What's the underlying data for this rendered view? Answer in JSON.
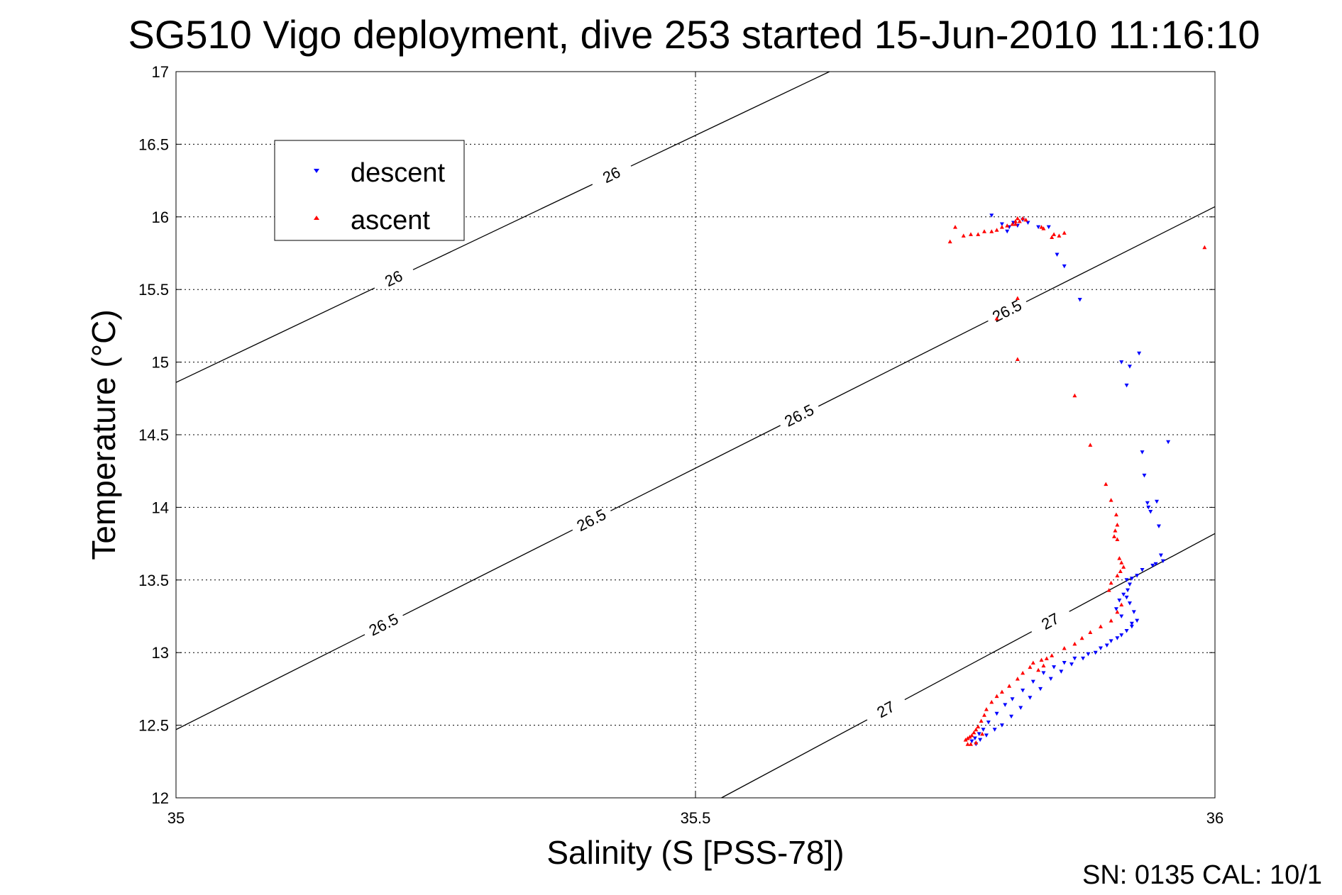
{
  "figure": {
    "title": "SG510 Vigo deployment, dive 253 started 15-Jun-2010 11:16:10",
    "footer": "SN: 0135  CAL: 10/1"
  },
  "chart_data": {
    "type": "scatter",
    "title": "SG510 Vigo deployment, dive 253 started 15-Jun-2010 11:16:10",
    "xlabel": "Salinity (S [PSS-78])",
    "ylabel": "Temperature (°C)",
    "xlim": [
      35,
      36
    ],
    "ylim": [
      12,
      17
    ],
    "xticks": [
      "35",
      "35.5",
      "36"
    ],
    "yticks": [
      "12",
      "12.5",
      "13",
      "13.5",
      "14",
      "14.5",
      "15",
      "15.5",
      "16",
      "16.5",
      "17"
    ],
    "grid": true,
    "legend_position": "upper-left",
    "colors": {
      "descent": "#0000ff",
      "ascent": "#ff0000",
      "contour": "#000000"
    },
    "series": [
      {
        "name": "descent",
        "marker": "triangle-down",
        "points": [
          [
            35.785,
            16.01
          ],
          [
            35.795,
            15.95
          ],
          [
            35.8,
            15.9
          ],
          [
            35.802,
            15.93
          ],
          [
            35.806,
            15.96
          ],
          [
            35.81,
            15.94
          ],
          [
            35.815,
            15.98
          ],
          [
            35.82,
            15.96
          ],
          [
            35.83,
            15.93
          ],
          [
            35.84,
            15.93
          ],
          [
            35.848,
            15.74
          ],
          [
            35.855,
            15.66
          ],
          [
            35.87,
            15.43
          ],
          [
            35.91,
            15.0
          ],
          [
            35.915,
            14.84
          ],
          [
            35.918,
            14.97
          ],
          [
            35.927,
            15.06
          ],
          [
            35.93,
            14.38
          ],
          [
            35.932,
            14.22
          ],
          [
            35.935,
            14.03
          ],
          [
            35.936,
            14.0
          ],
          [
            35.938,
            13.97
          ],
          [
            35.944,
            14.04
          ],
          [
            35.946,
            13.87
          ],
          [
            35.948,
            13.67
          ],
          [
            35.955,
            14.45
          ],
          [
            35.95,
            13.63
          ],
          [
            35.943,
            13.61
          ],
          [
            35.94,
            13.6
          ],
          [
            35.93,
            13.57
          ],
          [
            35.925,
            13.53
          ],
          [
            35.92,
            13.51
          ],
          [
            35.918,
            13.47
          ],
          [
            35.916,
            13.43
          ],
          [
            35.915,
            13.38
          ],
          [
            35.918,
            13.34
          ],
          [
            35.922,
            13.28
          ],
          [
            35.925,
            13.22
          ],
          [
            35.92,
            13.18
          ],
          [
            35.91,
            13.12
          ],
          [
            35.9,
            13.08
          ],
          [
            35.89,
            13.03
          ],
          [
            35.878,
            12.99
          ],
          [
            35.865,
            12.96
          ],
          [
            35.855,
            12.93
          ],
          [
            35.845,
            12.9
          ],
          [
            35.835,
            12.86
          ],
          [
            35.825,
            12.8
          ],
          [
            35.815,
            12.74
          ],
          [
            35.805,
            12.68
          ],
          [
            35.798,
            12.64
          ],
          [
            35.79,
            12.58
          ],
          [
            35.782,
            12.52
          ],
          [
            35.777,
            12.47
          ],
          [
            35.773,
            12.44
          ],
          [
            35.769,
            12.41
          ],
          [
            35.766,
            12.39
          ],
          [
            35.77,
            12.37
          ],
          [
            35.774,
            12.4
          ],
          [
            35.78,
            12.43
          ],
          [
            35.788,
            12.47
          ],
          [
            35.795,
            12.5
          ],
          [
            35.804,
            12.56
          ],
          [
            35.813,
            12.62
          ],
          [
            35.822,
            12.69
          ],
          [
            35.832,
            12.75
          ],
          [
            35.842,
            12.82
          ],
          [
            35.852,
            12.87
          ],
          [
            35.862,
            12.92
          ],
          [
            35.873,
            12.96
          ],
          [
            35.885,
            13.0
          ],
          [
            35.896,
            13.05
          ],
          [
            35.906,
            13.1
          ],
          [
            35.915,
            13.15
          ],
          [
            35.92,
            13.2
          ],
          [
            35.91,
            13.25
          ],
          [
            35.905,
            13.3
          ],
          [
            35.908,
            13.36
          ],
          [
            35.912,
            13.4
          ],
          [
            35.915,
            13.5
          ]
        ]
      },
      {
        "name": "ascent",
        "marker": "triangle-up",
        "points": [
          [
            35.745,
            15.83
          ],
          [
            35.75,
            15.93
          ],
          [
            35.758,
            15.87
          ],
          [
            35.765,
            15.88
          ],
          [
            35.772,
            15.88
          ],
          [
            35.778,
            15.9
          ],
          [
            35.785,
            15.9
          ],
          [
            35.79,
            15.91
          ],
          [
            35.795,
            15.93
          ],
          [
            35.8,
            15.94
          ],
          [
            35.805,
            15.95
          ],
          [
            35.808,
            15.97
          ],
          [
            35.81,
            15.99
          ],
          [
            35.812,
            15.97
          ],
          [
            35.815,
            15.99
          ],
          [
            35.818,
            15.98
          ],
          [
            35.808,
            15.95
          ],
          [
            35.79,
            15.3
          ],
          [
            35.81,
            15.44
          ],
          [
            35.81,
            15.02
          ],
          [
            35.833,
            15.93
          ],
          [
            35.835,
            15.92
          ],
          [
            35.843,
            15.86
          ],
          [
            35.845,
            15.88
          ],
          [
            35.85,
            15.87
          ],
          [
            35.855,
            15.89
          ],
          [
            35.865,
            14.77
          ],
          [
            35.88,
            14.43
          ],
          [
            35.895,
            14.16
          ],
          [
            35.9,
            14.05
          ],
          [
            35.905,
            13.95
          ],
          [
            35.906,
            13.88
          ],
          [
            35.904,
            13.84
          ],
          [
            35.903,
            13.8
          ],
          [
            35.906,
            13.78
          ],
          [
            35.908,
            13.65
          ],
          [
            35.91,
            13.62
          ],
          [
            35.912,
            13.59
          ],
          [
            35.909,
            13.56
          ],
          [
            35.906,
            13.53
          ],
          [
            35.9,
            13.48
          ],
          [
            35.898,
            13.43
          ],
          [
            35.91,
            13.33
          ],
          [
            35.906,
            13.28
          ],
          [
            35.9,
            13.22
          ],
          [
            35.89,
            13.18
          ],
          [
            35.88,
            13.14
          ],
          [
            35.872,
            13.1
          ],
          [
            35.865,
            13.06
          ],
          [
            35.855,
            13.03
          ],
          [
            35.843,
            12.98
          ],
          [
            35.838,
            12.96
          ],
          [
            35.833,
            12.95
          ],
          [
            35.825,
            12.93
          ],
          [
            35.822,
            12.9
          ],
          [
            35.815,
            12.86
          ],
          [
            35.81,
            12.82
          ],
          [
            35.802,
            12.77
          ],
          [
            35.795,
            12.73
          ],
          [
            35.79,
            12.7
          ],
          [
            35.785,
            12.66
          ],
          [
            35.78,
            12.61
          ],
          [
            35.778,
            12.57
          ],
          [
            35.775,
            12.53
          ],
          [
            35.772,
            12.49
          ],
          [
            35.77,
            12.47
          ],
          [
            35.768,
            12.45
          ],
          [
            35.766,
            12.43
          ],
          [
            35.764,
            12.42
          ],
          [
            35.762,
            12.41
          ],
          [
            35.76,
            12.4
          ],
          [
            35.776,
            12.44
          ],
          [
            35.77,
            12.38
          ],
          [
            35.765,
            12.37
          ],
          [
            35.762,
            12.37
          ],
          [
            35.83,
            12.88
          ],
          [
            35.835,
            12.91
          ],
          [
            35.99,
            15.79
          ]
        ]
      }
    ],
    "contours": [
      {
        "level": 26,
        "points": [
          [
            35.0,
            14.86
          ],
          [
            35.629,
            17.0
          ]
        ],
        "labels": [
          "26",
          "26"
        ]
      },
      {
        "level": 26.5,
        "points": [
          [
            35.0,
            12.47
          ],
          [
            36.0,
            16.07
          ]
        ],
        "labels": [
          "26.5",
          "26.5",
          "26.5",
          "26.5"
        ]
      },
      {
        "level": 27,
        "points": [
          [
            35.525,
            12.0
          ],
          [
            36.0,
            13.82
          ]
        ],
        "labels": [
          "27",
          "27"
        ]
      }
    ]
  }
}
